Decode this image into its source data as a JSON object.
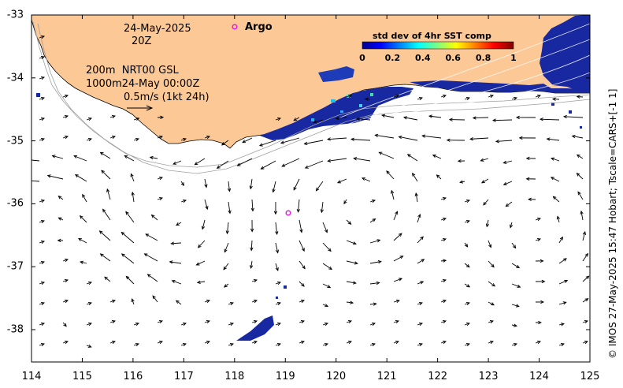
{
  "header": {
    "date": "24-May-2025",
    "time": "20Z",
    "depth_line1": "200m  NRT00 GSL",
    "depth_line2": "1000m24-May 00:00Z",
    "scale_label": "0.5m/s (1kt 24h)"
  },
  "argo": {
    "label": "Argo",
    "color": "#e020e0"
  },
  "colorbar": {
    "title": "std dev of 4hr SST comp",
    "ticks": [
      "0",
      "0.2",
      "0.4",
      "0.6",
      "0.8",
      "1"
    ]
  },
  "axes": {
    "x_ticks": [
      "114",
      "115",
      "116",
      "117",
      "118",
      "119",
      "120",
      "121",
      "122",
      "123",
      "124",
      "125"
    ],
    "y_ticks": [
      "-33",
      "-34",
      "-35",
      "-36",
      "-37",
      "-38"
    ]
  },
  "credit": "© IMOS 27-May-2025 15:47 Hobart; Tscale=CARS+[-1 1]",
  "colors": {
    "land": "#fbc896",
    "sst_low": "#1020a0",
    "coast": "#000000",
    "isobath": "#a0a0a0"
  }
}
